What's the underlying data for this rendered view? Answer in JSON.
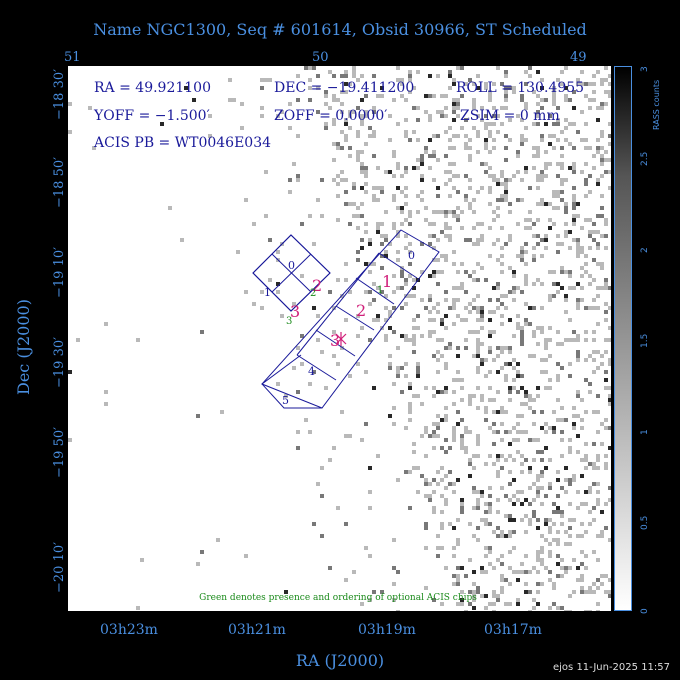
{
  "title": "Name NGC1300, Seq # 601614, Obsid 30966, ST Scheduled",
  "ra_deg_ticks": [
    "51",
    "50",
    "49"
  ],
  "ra_hms_ticks": [
    "03h23m",
    "03h21m",
    "03h19m",
    "03h17m"
  ],
  "dec_ticks": [
    "−18 30′",
    "−18 50′",
    "−19 10′",
    "−19 30′",
    "−19 50′",
    "−20 10′"
  ],
  "xlabel": "RA (J2000)",
  "ylabel": "Dec (J2000)",
  "info": {
    "ra": "RA = 49.921100",
    "dec": "DEC = −19.411200",
    "roll": "ROLL = 130.4955",
    "yoff": "YOFF = −1.500′",
    "zoff": "ZOFF = 0.0000′",
    "zsim": "ZSIM = 0 mm",
    "acis_pb": "ACIS PB = WT0046E034"
  },
  "note": "Green denotes presence and ordering of optional ACIS chips",
  "colorbar": {
    "title": "RASS counts",
    "ticks": [
      "0",
      "0.5",
      "1",
      "1.5",
      "2",
      "2.5",
      "3"
    ]
  },
  "chips": {
    "labels": [
      "0",
      "1",
      "2",
      "3",
      "0",
      "1",
      "2",
      "3",
      "4",
      "5"
    ],
    "pink_order": [
      "2",
      "3",
      "1",
      "2",
      "3"
    ],
    "green_order": [
      "2",
      "3",
      "1"
    ]
  },
  "footer": "ejos 11-Jun-2025 11:57",
  "colors": {
    "axis": "#4a8fe0",
    "chip": "#1a1a9a",
    "pink": "#d0207a",
    "green": "#1a8a1a"
  }
}
